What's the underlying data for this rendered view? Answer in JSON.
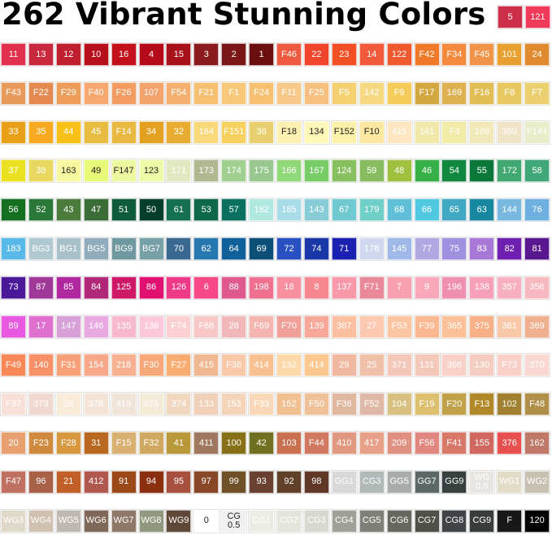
{
  "title": "262 Vibrant Stunning Colors",
  "header_swatches": [
    [
      "5",
      "#cc2f48"
    ],
    [
      "121",
      "#f03858"
    ]
  ],
  "rows": [
    [
      [
        "11",
        "#e0304e"
      ],
      [
        "13",
        "#c8293f"
      ],
      [
        "12",
        "#c01f30"
      ],
      [
        "10",
        "#b80f1c"
      ],
      [
        "16",
        "#c4101a"
      ],
      [
        "4",
        "#b50b1a"
      ],
      [
        "15",
        "#a8101a"
      ],
      [
        "3",
        "#8a1a1e"
      ],
      [
        "2",
        "#7a1618"
      ],
      [
        "1",
        "#6a0e10"
      ],
      [
        "F46",
        "#ee5a40"
      ],
      [
        "22",
        "#f0452c"
      ],
      [
        "23",
        "#f24f25"
      ],
      [
        "14",
        "#f05a3a"
      ],
      [
        "122",
        "#f0582e"
      ],
      [
        "F42",
        "#f07a2a"
      ],
      [
        "F34",
        "#f5893e"
      ],
      [
        "F45",
        "#f0944a"
      ],
      [
        "101",
        "#e8a030"
      ],
      [
        "24",
        "#e08a30"
      ]
    ],
    [
      [
        "F43",
        "#e89a5a"
      ],
      [
        "F22",
        "#e48a50"
      ],
      [
        "F29",
        "#ee9c5a"
      ],
      [
        "F40",
        "#f7a870"
      ],
      [
        "F26",
        "#f39c62"
      ],
      [
        "107",
        "#f3a46c"
      ],
      [
        "F54",
        "#f5b070"
      ],
      [
        "F21",
        "#f7c070"
      ],
      [
        "F1",
        "#f7c87a"
      ],
      [
        "F24",
        "#f5c070"
      ],
      [
        "F11",
        "#f7c888"
      ],
      [
        "F25",
        "#f7c080"
      ],
      [
        "F5",
        "#f5d070"
      ],
      [
        "142",
        "#f5d880"
      ],
      [
        "F9",
        "#f5cc5a"
      ],
      [
        "F17",
        "#d4a840"
      ],
      [
        "169",
        "#ddb050"
      ],
      [
        "F16",
        "#e0be55"
      ],
      [
        "F8",
        "#e8c860"
      ],
      [
        "F7",
        "#ecd070"
      ]
    ],
    [
      [
        "33",
        "#e8a018"
      ],
      [
        "35",
        "#f7aa20"
      ],
      [
        "44",
        "#f8c018"
      ],
      [
        "45",
        "#e8bc40"
      ],
      [
        "F14",
        "#e8b840"
      ],
      [
        "34",
        "#e4a020"
      ],
      [
        "32",
        "#e8ac30"
      ],
      [
        "164",
        "#f8d878"
      ],
      [
        "F151",
        "#f8d060"
      ],
      [
        "36",
        "#e8d070"
      ],
      [
        "F18",
        "#fdf0b0",
        "#222222"
      ],
      [
        "134",
        "#fff8b8",
        "#222222"
      ],
      [
        "F152",
        "#fdf0a8",
        "#222222"
      ],
      [
        "F10",
        "#fde8a0",
        "#222222"
      ],
      [
        "416",
        "#fde6c0"
      ],
      [
        "141",
        "#f0e8a8"
      ],
      [
        "F3",
        "#f0eca8"
      ],
      [
        "109",
        "#f0e8b8"
      ],
      [
        "360",
        "#f0e4c8"
      ],
      [
        "F144",
        "#e8ecc8"
      ]
    ],
    [
      [
        "37",
        "#eae020"
      ],
      [
        "38",
        "#e8d860"
      ],
      [
        "163",
        "#f8f8a0",
        "#222222"
      ],
      [
        "49",
        "#e8f878",
        "#222222"
      ],
      [
        "F147",
        "#eef8a0",
        "#222222"
      ],
      [
        "123",
        "#eefca8",
        "#222222"
      ],
      [
        "171",
        "#e0e8c0"
      ],
      [
        "173",
        "#b0b890"
      ],
      [
        "174",
        "#a0d090"
      ],
      [
        "175",
        "#98c890"
      ],
      [
        "166",
        "#90d878"
      ],
      [
        "167",
        "#78cc68"
      ],
      [
        "124",
        "#88c060"
      ],
      [
        "59",
        "#88bc60"
      ],
      [
        "48",
        "#a0c040"
      ],
      [
        "46",
        "#38b048"
      ],
      [
        "54",
        "#108840"
      ],
      [
        "55",
        "#0a7838"
      ],
      [
        "172",
        "#40a870"
      ],
      [
        "58",
        "#40a878"
      ]
    ],
    [
      [
        "56",
        "#147020"
      ],
      [
        "52",
        "#2a7838"
      ],
      [
        "43",
        "#4c7c3c"
      ],
      [
        "47",
        "#3a6c38"
      ],
      [
        "51",
        "#0e5c3c"
      ],
      [
        "50",
        "#063e2c"
      ],
      [
        "61",
        "#147050"
      ],
      [
        "53",
        "#0c6848"
      ],
      [
        "57",
        "#0a7060"
      ],
      [
        "182",
        "#b0e8e0"
      ],
      [
        "185",
        "#a8dce8"
      ],
      [
        "143",
        "#88ccd8"
      ],
      [
        "67",
        "#70c8d0"
      ],
      [
        "179",
        "#70d0c8"
      ],
      [
        "68",
        "#60c0d8"
      ],
      [
        "66",
        "#50c8e0"
      ],
      [
        "65",
        "#40a8c0"
      ],
      [
        "63",
        "#1888a0"
      ],
      [
        "144",
        "#78b8e0"
      ],
      [
        "76",
        "#70b0e0"
      ]
    ],
    [
      [
        "183",
        "#58b8e8"
      ],
      [
        "BG3",
        "#b0c8d0"
      ],
      [
        "BG1",
        "#a8c0c8"
      ],
      [
        "BG5",
        "#90acbc"
      ],
      [
        "BG9",
        "#7098a0"
      ],
      [
        "BG7",
        "#78a0a8"
      ],
      [
        "70",
        "#3a6890"
      ],
      [
        "62",
        "#2878b0"
      ],
      [
        "64",
        "#10609c"
      ],
      [
        "69",
        "#0c5078"
      ],
      [
        "72",
        "#2850c0"
      ],
      [
        "74",
        "#1838a8"
      ],
      [
        "71",
        "#1a20b0"
      ],
      [
        "178",
        "#d0d8f0"
      ],
      [
        "145",
        "#a0b8e8"
      ],
      [
        "77",
        "#b0a8e0"
      ],
      [
        "75",
        "#a090e0"
      ],
      [
        "83",
        "#a878d8"
      ],
      [
        "82",
        "#7020b0"
      ],
      [
        "81",
        "#5a1890"
      ]
    ],
    [
      [
        "73",
        "#4a1898"
      ],
      [
        "87",
        "#a03898"
      ],
      [
        "85",
        "#b028a0"
      ],
      [
        "84",
        "#b02878"
      ],
      [
        "125",
        "#d01868"
      ],
      [
        "86",
        "#e01070"
      ],
      [
        "126",
        "#f03888"
      ],
      [
        "6",
        "#f84888"
      ],
      [
        "88",
        "#e05890"
      ],
      [
        "198",
        "#f07090"
      ],
      [
        "18",
        "#f890a0"
      ],
      [
        "8",
        "#f88890"
      ],
      [
        "137",
        "#f898a8"
      ],
      [
        "F71",
        "#e88898"
      ],
      [
        "7",
        "#f8a0b0"
      ],
      [
        "9",
        "#f8a8b8"
      ],
      [
        "196",
        "#f090b0"
      ],
      [
        "138",
        "#f8a0b8"
      ],
      [
        "357",
        "#f8b0c0"
      ],
      [
        "356",
        "#f8b8c0"
      ]
    ],
    [
      [
        "89",
        "#e858e0"
      ],
      [
        "17",
        "#e070d0"
      ],
      [
        "147",
        "#d8a0d8"
      ],
      [
        "146",
        "#e8a8e0"
      ],
      [
        "135",
        "#f8b8d0"
      ],
      [
        "136",
        "#fcc8dc"
      ],
      [
        "F74",
        "#fcd0d0"
      ],
      [
        "F68",
        "#f8c8c8"
      ],
      [
        "28",
        "#f0b8b8"
      ],
      [
        "F69",
        "#f4b4b0"
      ],
      [
        "F70",
        "#f0a098"
      ],
      [
        "139",
        "#f8a898"
      ],
      [
        "367",
        "#fcc0a0"
      ],
      [
        "27",
        "#fcc8b0"
      ],
      [
        "F53",
        "#fcc4a0"
      ],
      [
        "F39",
        "#fcb890"
      ],
      [
        "365",
        "#fcc098"
      ],
      [
        "375",
        "#f8b088"
      ],
      [
        "361",
        "#f8c8a8"
      ],
      [
        "369",
        "#f0b090"
      ]
    ],
    [
      [
        "F49",
        "#f88858"
      ],
      [
        "140",
        "#f89068"
      ],
      [
        "F31",
        "#f8a078"
      ],
      [
        "154",
        "#f8a888"
      ],
      [
        "218",
        "#f8b090"
      ],
      [
        "F30",
        "#f8a878"
      ],
      [
        "F27",
        "#f8ac70"
      ],
      [
        "415",
        "#f0b890"
      ],
      [
        "F38",
        "#f8c8a8"
      ],
      [
        "414",
        "#f8c090"
      ],
      [
        "132",
        "#fdd8a8"
      ],
      [
        "414",
        "#fcc890"
      ],
      [
        "29",
        "#f0b8a0"
      ],
      [
        "25",
        "#f0c0a8"
      ],
      [
        "371",
        "#f4c8b8"
      ],
      [
        "131",
        "#f4c8b8"
      ],
      [
        "366",
        "#f8d0c8"
      ],
      [
        "130",
        "#f4ccc0"
      ],
      [
        "F73",
        "#f8d0c8"
      ],
      [
        "370",
        "#f8d8d0"
      ]
    ],
    [
      [
        "F37",
        "#f8e0d8"
      ],
      [
        "379",
        "#f0d8d0"
      ],
      [
        "26",
        "#f8ecd8"
      ],
      [
        "378",
        "#f4e4d8"
      ],
      [
        "413",
        "#f0e4d8"
      ],
      [
        "373",
        "#f4ead8"
      ],
      [
        "374",
        "#f0d8c0"
      ],
      [
        "133",
        "#f0d0b8"
      ],
      [
        "153",
        "#f4d4b8"
      ],
      [
        "F33",
        "#f8d8b8"
      ],
      [
        "152",
        "#f0c090"
      ],
      [
        "F50",
        "#f0c098"
      ],
      [
        "F36",
        "#e0b8a0"
      ],
      [
        "F52",
        "#e0b8a8"
      ],
      [
        "104",
        "#d8c080"
      ],
      [
        "F19",
        "#dcc070"
      ],
      [
        "F20",
        "#c0a048"
      ],
      [
        "F13",
        "#b08828"
      ],
      [
        "102",
        "#a08030"
      ],
      [
        "F48",
        "#b09048"
      ]
    ],
    [
      [
        "20",
        "#e8a070"
      ],
      [
        "F23",
        "#d08a40"
      ],
      [
        "F28",
        "#d89840"
      ],
      [
        "31",
        "#b86820"
      ],
      [
        "F15",
        "#d8b070"
      ],
      [
        "F32",
        "#d0a860"
      ],
      [
        "41",
        "#b89838"
      ],
      [
        "411",
        "#a07860"
      ],
      [
        "100",
        "#887018"
      ],
      [
        "42",
        "#707020"
      ],
      [
        "103",
        "#c87050"
      ],
      [
        "F44",
        "#d07860"
      ],
      [
        "410",
        "#e09880"
      ],
      [
        "417",
        "#e8a088"
      ],
      [
        "209",
        "#e09080"
      ],
      [
        "F56",
        "#e08880"
      ],
      [
        "F41",
        "#d87868"
      ],
      [
        "155",
        "#d06860"
      ],
      [
        "376",
        "#e85050"
      ],
      [
        "162",
        "#c07868"
      ]
    ],
    [
      [
        "F47",
        "#c07060"
      ],
      [
        "96",
        "#a86048"
      ],
      [
        "21",
        "#c06028"
      ],
      [
        "412",
        "#b05850"
      ],
      [
        "91",
        "#9c4818"
      ],
      [
        "94",
        "#8a3010"
      ],
      [
        "95",
        "#a85040"
      ],
      [
        "97",
        "#884828"
      ],
      [
        "99",
        "#705028"
      ],
      [
        "93",
        "#6a4030"
      ],
      [
        "92",
        "#604028"
      ],
      [
        "98",
        "#603828"
      ],
      [
        "GG1",
        "#d8d8d8"
      ],
      [
        "CG3",
        "#b0b8b8"
      ],
      [
        "GG5",
        "#a8acac"
      ],
      [
        "GG7",
        "#5c6868"
      ],
      [
        "GG9",
        "#384040"
      ],
      [
        "WG\n0.5",
        "#e8e4e0"
      ],
      [
        "WG1",
        "#e0dcc8"
      ],
      [
        "WG2",
        "#c8c0b0"
      ]
    ],
    [
      [
        "WG3",
        "#e0d8c8"
      ],
      [
        "WG4",
        "#d0c0b0"
      ],
      [
        "WG5",
        "#c0b8b0"
      ],
      [
        "WG6",
        "#806858"
      ],
      [
        "WG7",
        "#907868"
      ],
      [
        "WG8",
        "#909880"
      ],
      [
        "WG9",
        "#604838"
      ],
      [
        "0",
        "#ffffff",
        "#222222"
      ],
      [
        "CG\n0.5",
        "#f0f0f0",
        "#222222"
      ],
      [
        "CG1",
        "#ecece4"
      ],
      [
        "CG2",
        "#e4e4dc"
      ],
      [
        "CG3",
        "#d8d8d0"
      ],
      [
        "CG4",
        "#a0a098"
      ],
      [
        "CG5",
        "#808078"
      ],
      [
        "CG6",
        "#686860"
      ],
      [
        "CG7",
        "#505048"
      ],
      [
        "CG8",
        "#404448"
      ],
      [
        "CG9",
        "#383c3c"
      ],
      [
        "F",
        "#181818"
      ],
      [
        "120",
        "#000000"
      ]
    ]
  ]
}
